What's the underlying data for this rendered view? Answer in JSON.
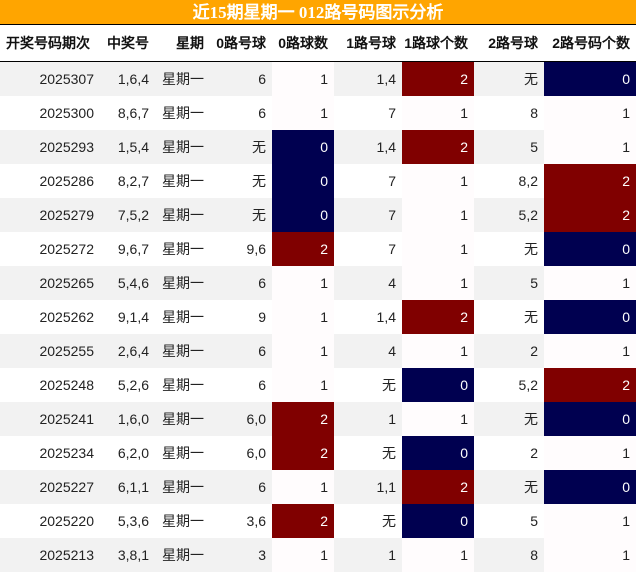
{
  "title": "近15期星期一 012路号码图示分析",
  "headers": [
    "开奖号码期次",
    "中奖号",
    "星期",
    "0路号球",
    "0路球数",
    "1路号球",
    "1路球个数",
    "2路号球",
    "2路号码个数"
  ],
  "colors": {
    "title_bg": "#ffa500",
    "count_2": "#800000",
    "count_0": "#000050",
    "row_alt": "#f2f2f2"
  },
  "rows": [
    [
      "2025307",
      "1,6,4",
      "星期一",
      "6",
      "1",
      "1,4",
      "2",
      "无",
      "0"
    ],
    [
      "2025300",
      "8,6,7",
      "星期一",
      "6",
      "1",
      "7",
      "1",
      "8",
      "1"
    ],
    [
      "2025293",
      "1,5,4",
      "星期一",
      "无",
      "0",
      "1,4",
      "2",
      "5",
      "1"
    ],
    [
      "2025286",
      "8,2,7",
      "星期一",
      "无",
      "0",
      "7",
      "1",
      "8,2",
      "2"
    ],
    [
      "2025279",
      "7,5,2",
      "星期一",
      "无",
      "0",
      "7",
      "1",
      "5,2",
      "2"
    ],
    [
      "2025272",
      "9,6,7",
      "星期一",
      "9,6",
      "2",
      "7",
      "1",
      "无",
      "0"
    ],
    [
      "2025265",
      "5,4,6",
      "星期一",
      "6",
      "1",
      "4",
      "1",
      "5",
      "1"
    ],
    [
      "2025262",
      "9,1,4",
      "星期一",
      "9",
      "1",
      "1,4",
      "2",
      "无",
      "0"
    ],
    [
      "2025255",
      "2,6,4",
      "星期一",
      "6",
      "1",
      "4",
      "1",
      "2",
      "1"
    ],
    [
      "2025248",
      "5,2,6",
      "星期一",
      "6",
      "1",
      "无",
      "0",
      "5,2",
      "2"
    ],
    [
      "2025241",
      "1,6,0",
      "星期一",
      "6,0",
      "2",
      "1",
      "1",
      "无",
      "0"
    ],
    [
      "2025234",
      "6,2,0",
      "星期一",
      "6,0",
      "2",
      "无",
      "0",
      "2",
      "1"
    ],
    [
      "2025227",
      "6,1,1",
      "星期一",
      "6",
      "1",
      "1,1",
      "2",
      "无",
      "0"
    ],
    [
      "2025220",
      "5,3,6",
      "星期一",
      "3,6",
      "2",
      "无",
      "0",
      "5",
      "1"
    ],
    [
      "2025213",
      "3,8,1",
      "星期一",
      "3",
      "1",
      "1",
      "1",
      "8",
      "1"
    ]
  ]
}
